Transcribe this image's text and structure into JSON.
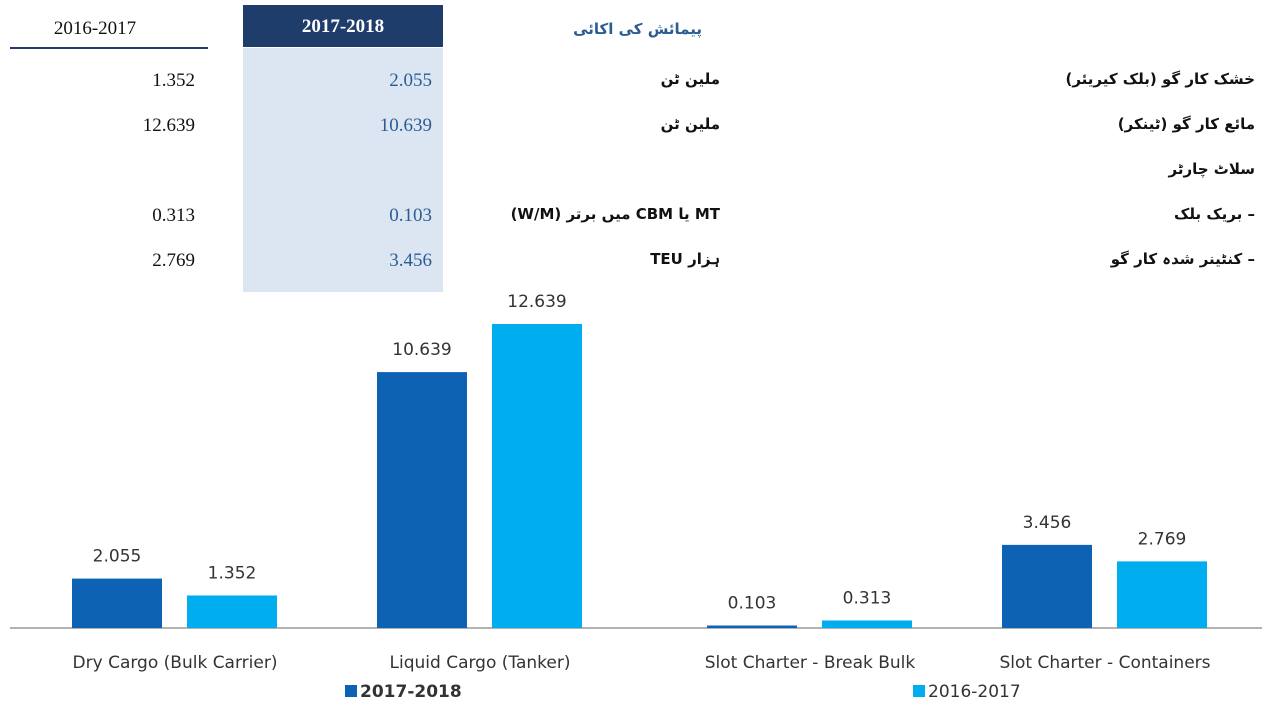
{
  "table": {
    "headers": {
      "prior": "2016-2017",
      "current": "2017-2018",
      "unit": "پیمائش کی اکائی"
    },
    "rows": [
      {
        "label": "خشک کار گو (بلک کیریئر)",
        "unit": "ملین ٹن",
        "current": "2.055",
        "prior": "1.352"
      },
      {
        "label": "مائع کار گو (ٹینکر)",
        "unit": "ملین ٹن",
        "current": "10.639",
        "prior": "12.639"
      },
      {
        "label": "سلاٹ چارٹر"
      },
      {
        "label": "– بریک بلک",
        "unit": "MT یا CBM میں برتر (W/M)",
        "current": "0.103",
        "prior": "0.313"
      },
      {
        "label": "– کنٹینر شدہ کار گو",
        "unit": "ہزار TEU",
        "current": "3.456",
        "prior": "2.769"
      }
    ]
  },
  "chart_data": {
    "type": "bar",
    "categories": [
      "Dry Cargo (Bulk Carrier)",
      "Liquid Cargo (Tanker)",
      "Slot Charter - Break Bulk",
      "Slot Charter - Containers"
    ],
    "series": [
      {
        "name": "2017-2018",
        "color": "#0d62b3",
        "values": [
          2.055,
          10.639,
          0.103,
          3.456
        ]
      },
      {
        "name": "2016-2017",
        "color": "#00aeef",
        "values": [
          1.352,
          12.639,
          0.313,
          2.769
        ]
      }
    ]
  }
}
